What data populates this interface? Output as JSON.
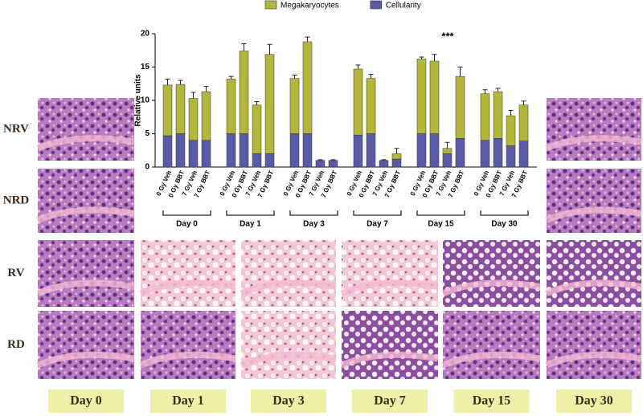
{
  "chart_data": {
    "type": "stacked_bar",
    "ylabel": "Relative units",
    "annotation": "***",
    "groups": [
      "Day 0",
      "Day 1",
      "Day 3",
      "Day 7",
      "Day 15",
      "Day 30"
    ],
    "categories": [
      "0 Gy Veh",
      "0 Gy BBT",
      "7 Gy Veh",
      "7 Gy BBT",
      "0 Gy Veh",
      "0 Gy BBT",
      "7 Gy Veh",
      "7 Gy BBT",
      "0 Gy Veh",
      "0 Gy BBT",
      "7 Gy Veh",
      "7 Gy BBT",
      "0 Gy Veh",
      "0 Gy BBT",
      "7 Gy Veh",
      "7 Gy BBT",
      "0 Gy Veh",
      "0 Gy BBT",
      "7 Gy Veh",
      "7 Gy BBT",
      "0 Gy Veh",
      "0 Gy BBT",
      "7 Gy Veh",
      "7 Gy BBT"
    ],
    "series": [
      {
        "name": "Cellularity",
        "color": "#5b5aa6",
        "values": [
          4.7,
          5.0,
          4.0,
          4.0,
          5.0,
          5.0,
          2.0,
          2.0,
          5.0,
          5.0,
          1.0,
          1.0,
          4.8,
          5.0,
          1.0,
          1.2,
          5.0,
          5.0,
          2.0,
          4.3,
          4.0,
          4.3,
          3.2,
          3.9
        ],
        "errors": [
          0.3,
          0.2,
          0.2,
          0.2,
          0.2,
          0.2,
          0.1,
          0.1,
          0.2,
          0.2,
          0.1,
          0.1,
          0.3,
          0.2,
          0.1,
          0.1,
          0.2,
          0.2,
          0.4,
          0.2,
          0.2,
          0.3,
          0.3,
          0.2
        ]
      },
      {
        "name": "Megakaryocytes",
        "color": "#b3b63a",
        "values": [
          7.6,
          7.4,
          6.3,
          7.3,
          8.2,
          12.4,
          7.3,
          14.9,
          8.3,
          13.8,
          0,
          0,
          9.9,
          8.3,
          0,
          0.8,
          11.2,
          10.9,
          0.8,
          9.3,
          7.0,
          7.0,
          4.5,
          5.4
        ],
        "errors": [
          0.9,
          0.6,
          0.9,
          0.8,
          0.4,
          1.1,
          0.5,
          1.5,
          0.5,
          0.7,
          0,
          0,
          0.6,
          0.6,
          0,
          0.8,
          0.3,
          1.0,
          0.9,
          1.4,
          0.6,
          0.5,
          0.8,
          0.6
        ]
      }
    ],
    "ylim": [
      0,
      20
    ],
    "yticks": [
      0,
      5,
      10,
      15,
      20
    ],
    "legend": "top"
  },
  "panels": {
    "rows": [
      "NRV",
      "NRD",
      "RV",
      "RD"
    ],
    "columns": [
      "Day 0",
      "Day 1",
      "Day 3",
      "Day 7",
      "Day 15",
      "Day 30"
    ]
  }
}
